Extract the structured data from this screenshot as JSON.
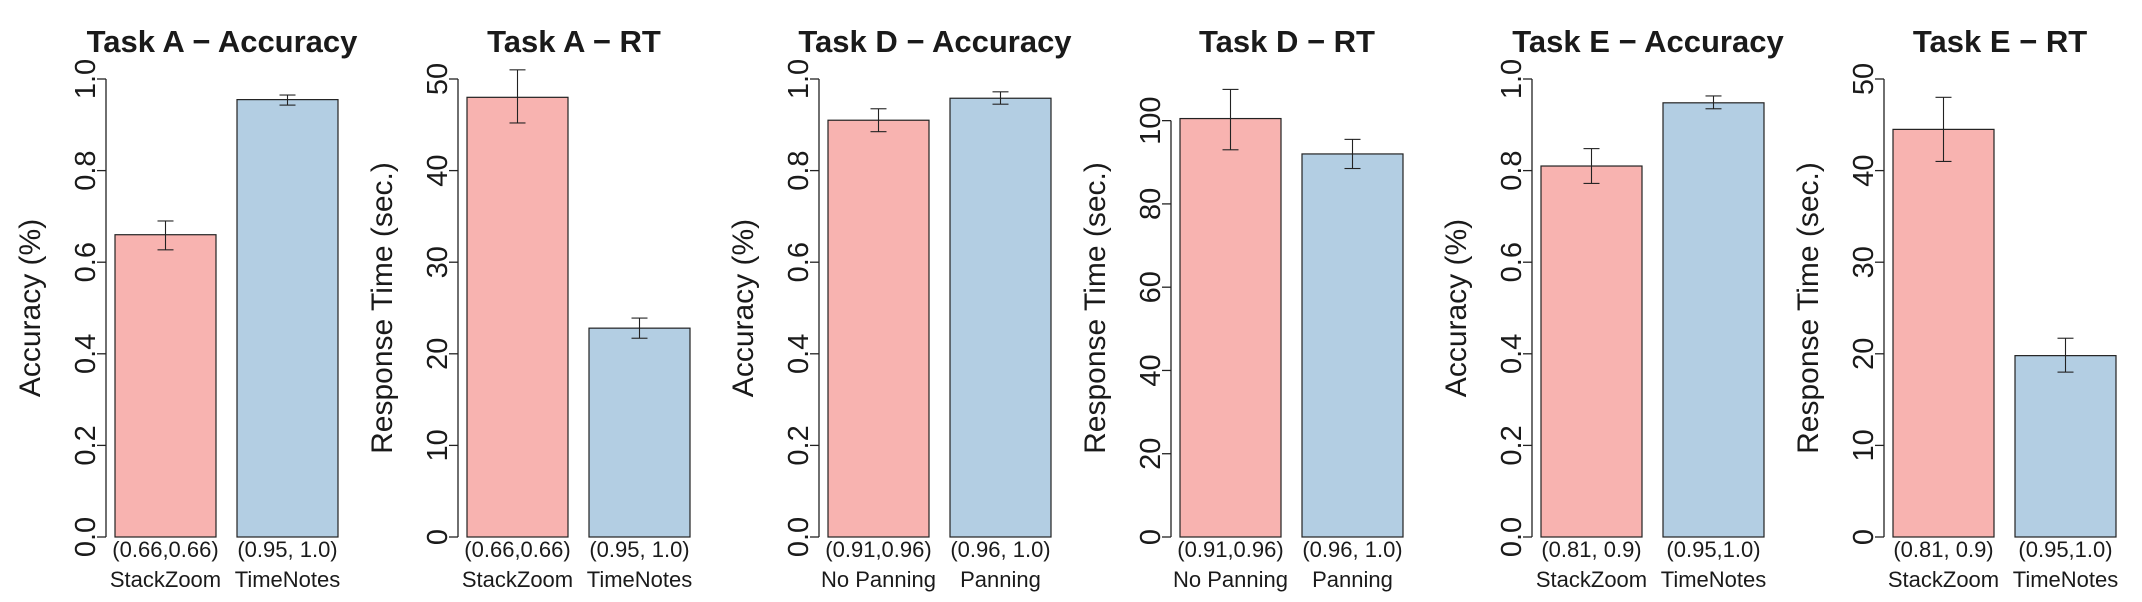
{
  "colors": {
    "bar_a": "#F8B3B0",
    "bar_b": "#B3CEE3",
    "stroke": "#222222"
  },
  "chart_data": [
    {
      "type": "bar",
      "title": "Task A − Accuracy",
      "ylabel": "Accuracy (%)",
      "ylim": [
        0,
        1
      ],
      "yticks": [
        "0.0",
        "0.2",
        "0.4",
        "0.6",
        "0.8",
        "1.0"
      ],
      "categories": [
        "StackZoom",
        "TimeNotes"
      ],
      "values": [
        0.66,
        0.955
      ],
      "ci_low": [
        0.627,
        0.943
      ],
      "ci_high": [
        0.69,
        0.965
      ],
      "annotations": [
        "(0.66,0.66)",
        "(0.95, 1.0)"
      ]
    },
    {
      "type": "bar",
      "title": "Task A − RT",
      "ylabel": "Response Time (sec.)",
      "ylim": [
        0,
        50
      ],
      "yticks": [
        "0",
        "10",
        "20",
        "30",
        "40",
        "50"
      ],
      "categories": [
        "StackZoom",
        "TimeNotes"
      ],
      "values": [
        48,
        22.8
      ],
      "ci_low": [
        45.2,
        21.7
      ],
      "ci_high": [
        51,
        23.9
      ],
      "annotations": [
        "(0.66,0.66)",
        "(0.95, 1.0)"
      ]
    },
    {
      "type": "bar",
      "title": "Task D − Accuracy",
      "ylabel": "Accuracy (%)",
      "ylim": [
        0,
        1
      ],
      "yticks": [
        "0.0",
        "0.2",
        "0.4",
        "0.6",
        "0.8",
        "1.0"
      ],
      "categories": [
        "No Panning",
        "Panning"
      ],
      "values": [
        0.91,
        0.958
      ],
      "ci_low": [
        0.885,
        0.945
      ],
      "ci_high": [
        0.935,
        0.972
      ],
      "annotations": [
        "(0.91,0.96)",
        "(0.96, 1.0)"
      ]
    },
    {
      "type": "bar",
      "title": "Task D − RT",
      "ylabel": "Response Time (sec.)",
      "ylim": [
        0,
        110
      ],
      "yticks": [
        "0",
        "20",
        "40",
        "60",
        "80",
        "100"
      ],
      "categories": [
        "No Panning",
        "Panning"
      ],
      "values": [
        100.5,
        92
      ],
      "ci_low": [
        93,
        88.5
      ],
      "ci_high": [
        107.5,
        95.5
      ],
      "annotations": [
        "(0.91,0.96)",
        "(0.96, 1.0)"
      ]
    },
    {
      "type": "bar",
      "title": "Task E − Accuracy",
      "ylabel": "Accuracy (%)",
      "ylim": [
        0,
        1
      ],
      "yticks": [
        "0.0",
        "0.2",
        "0.4",
        "0.6",
        "0.8",
        "1.0"
      ],
      "categories": [
        "StackZoom",
        "TimeNotes"
      ],
      "values": [
        0.81,
        0.948
      ],
      "ci_low": [
        0.772,
        0.935
      ],
      "ci_high": [
        0.848,
        0.963
      ],
      "annotations": [
        "(0.81, 0.9)",
        "(0.95,1.0)"
      ]
    },
    {
      "type": "bar",
      "title": "Task E − RT",
      "ylabel": "Response Time (sec.)",
      "ylim": [
        0,
        50
      ],
      "yticks": [
        "0",
        "10",
        "20",
        "30",
        "40",
        "50"
      ],
      "categories": [
        "StackZoom",
        "TimeNotes"
      ],
      "values": [
        44.5,
        19.8
      ],
      "ci_low": [
        41,
        18
      ],
      "ci_high": [
        48,
        21.7
      ],
      "annotations": [
        "(0.81, 0.9)",
        "(0.95,1.0)"
      ]
    }
  ]
}
